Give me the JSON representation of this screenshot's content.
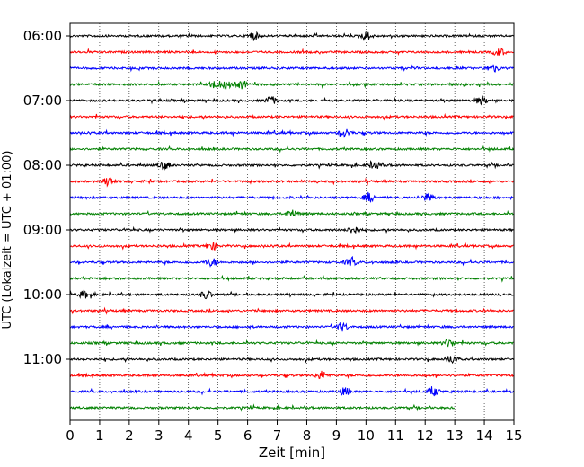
{
  "chart_data": {
    "type": "line",
    "title": "",
    "xlabel": "Zeit  [min]",
    "ylabel": "UTC (Lokalzeit = UTC + 01:00)",
    "xlim": [
      0,
      15
    ],
    "x_ticks": [
      0,
      1,
      2,
      3,
      4,
      5,
      6,
      7,
      8,
      9,
      10,
      11,
      12,
      13,
      14,
      15
    ],
    "y_tick_labels": [
      "06:00",
      "07:00",
      "08:00",
      "09:00",
      "10:00",
      "11:00"
    ],
    "grid": "vertical dotted",
    "trace_minutes_per_line": 15,
    "color_cycle": [
      "#000000",
      "#ff0000",
      "#0000ff",
      "#008000"
    ],
    "series": [
      {
        "start": "06:00",
        "end_min": 15,
        "color": "#000000",
        "events": [
          6.2,
          10.0
        ]
      },
      {
        "start": "06:15",
        "end_min": 15,
        "color": "#ff0000",
        "events": [
          14.5
        ]
      },
      {
        "start": "06:30",
        "end_min": 15,
        "color": "#0000ff",
        "events": [
          14.3
        ]
      },
      {
        "start": "06:45",
        "end_min": 15,
        "color": "#008000",
        "events": [
          4.9,
          5.3,
          5.8
        ]
      },
      {
        "start": "07:00",
        "end_min": 15,
        "color": "#000000",
        "events": [
          6.8,
          13.9
        ]
      },
      {
        "start": "07:15",
        "end_min": 15,
        "color": "#ff0000",
        "events": []
      },
      {
        "start": "07:30",
        "end_min": 15,
        "color": "#0000ff",
        "events": [
          9.3
        ]
      },
      {
        "start": "07:45",
        "end_min": 15,
        "color": "#008000",
        "events": []
      },
      {
        "start": "08:00",
        "end_min": 15,
        "color": "#000000",
        "events": [
          3.2,
          10.3
        ]
      },
      {
        "start": "08:15",
        "end_min": 15,
        "color": "#ff0000",
        "events": [
          1.3
        ]
      },
      {
        "start": "08:30",
        "end_min": 15,
        "color": "#0000ff",
        "events": [
          10.1,
          12.1
        ]
      },
      {
        "start": "08:45",
        "end_min": 15,
        "color": "#008000",
        "events": [
          7.5
        ]
      },
      {
        "start": "09:00",
        "end_min": 15,
        "color": "#000000",
        "events": [
          9.6
        ]
      },
      {
        "start": "09:15",
        "end_min": 15,
        "color": "#ff0000",
        "events": [
          4.8
        ]
      },
      {
        "start": "09:30",
        "end_min": 15,
        "color": "#0000ff",
        "events": [
          4.8,
          9.5
        ]
      },
      {
        "start": "09:45",
        "end_min": 15,
        "color": "#008000",
        "events": []
      },
      {
        "start": "10:00",
        "end_min": 15,
        "color": "#000000",
        "events": [
          0.5,
          4.6
        ]
      },
      {
        "start": "10:15",
        "end_min": 15,
        "color": "#ff0000",
        "events": []
      },
      {
        "start": "10:30",
        "end_min": 15,
        "color": "#0000ff",
        "events": [
          9.2
        ]
      },
      {
        "start": "10:45",
        "end_min": 15,
        "color": "#008000",
        "events": [
          12.8
        ]
      },
      {
        "start": "11:00",
        "end_min": 15,
        "color": "#000000",
        "events": [
          12.9
        ]
      },
      {
        "start": "11:15",
        "end_min": 15,
        "color": "#ff0000",
        "events": [
          8.5
        ]
      },
      {
        "start": "11:30",
        "end_min": 15,
        "color": "#0000ff",
        "events": [
          9.3,
          12.3
        ]
      },
      {
        "start": "11:45",
        "end_min": 13,
        "color": "#008000",
        "events": []
      }
    ]
  }
}
